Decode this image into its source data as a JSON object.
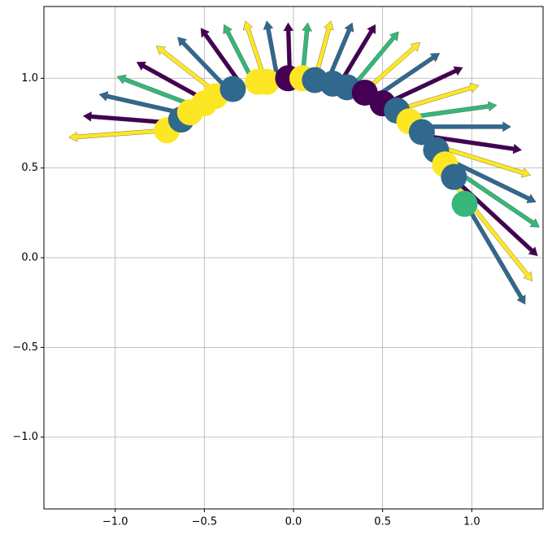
{
  "chart_data": {
    "type": "quiver",
    "xlim": [
      -1.4,
      1.4
    ],
    "ylim": [
      -1.4,
      1.4
    ],
    "xticks": [
      {
        "value": -1.0,
        "label": "−1.0"
      },
      {
        "value": -0.5,
        "label": "−0.5"
      },
      {
        "value": 0.0,
        "label": "0.0"
      },
      {
        "value": 0.5,
        "label": "0.5"
      },
      {
        "value": 1.0,
        "label": "1.0"
      }
    ],
    "yticks": [
      {
        "value": -1.0,
        "label": "−1.0"
      },
      {
        "value": -0.5,
        "label": "−0.5"
      },
      {
        "value": 0.0,
        "label": "0.0"
      },
      {
        "value": 0.5,
        "label": "0.5"
      },
      {
        "value": 1.0,
        "label": "1.0"
      }
    ],
    "grid": true,
    "quiver": {
      "x": [
        -0.71,
        -0.66,
        -0.6,
        -0.54,
        -0.48,
        -0.42,
        -0.36,
        -0.29,
        -0.22,
        -0.16,
        -0.09,
        -0.02,
        0.05,
        0.12,
        0.19,
        0.26,
        0.33,
        0.39,
        0.45,
        0.52,
        0.57,
        0.63,
        0.68,
        0.73,
        0.78,
        0.82,
        0.86,
        0.89,
        0.92,
        0.95
      ],
      "y": [
        0.71,
        0.75,
        0.8,
        0.84,
        0.87,
        0.91,
        0.93,
        0.96,
        0.97,
        0.99,
        1.0,
        1.0,
        1.0,
        0.99,
        0.98,
        0.97,
        0.95,
        0.92,
        0.89,
        0.86,
        0.82,
        0.78,
        0.73,
        0.68,
        0.63,
        0.57,
        0.52,
        0.45,
        0.39,
        0.33
      ],
      "u": [
        -0.55,
        -0.52,
        -0.49,
        -0.45,
        -0.4,
        -0.35,
        -0.29,
        -0.23,
        -0.17,
        -0.11,
        -0.06,
        -0.01,
        0.03,
        0.09,
        0.14,
        0.2,
        0.26,
        0.32,
        0.37,
        0.43,
        0.47,
        0.51,
        0.54,
        0.55,
        0.55,
        0.54,
        0.52,
        0.48,
        0.42,
        0.35
      ],
      "v": [
        -0.04,
        0.04,
        0.11,
        0.17,
        0.22,
        0.27,
        0.3,
        0.32,
        0.33,
        0.33,
        0.32,
        0.31,
        0.31,
        0.33,
        0.33,
        0.33,
        0.31,
        0.28,
        0.25,
        0.2,
        0.14,
        0.07,
        0.0,
        -0.08,
        -0.17,
        -0.26,
        -0.35,
        -0.44,
        -0.52,
        -0.59
      ],
      "colors": [
        "#fde725",
        "#440154",
        "#31688e",
        "#35b779",
        "#440154",
        "#fde725",
        "#31688e",
        "#440154",
        "#35b779",
        "#fde725",
        "#31688e",
        "#440154",
        "#35b779",
        "#fde725",
        "#31688e",
        "#440154",
        "#35b779",
        "#fde725",
        "#31688e",
        "#440154",
        "#fde725",
        "#35b779",
        "#31688e",
        "#440154",
        "#fde725",
        "#31688e",
        "#35b779",
        "#440154",
        "#fde725",
        "#31688e"
      ]
    },
    "scatter": {
      "x": [
        -0.71,
        -0.63,
        -0.58,
        -0.5,
        -0.44,
        -0.34,
        -0.2,
        -0.15,
        -0.03,
        0.05,
        0.12,
        0.22,
        0.3,
        0.4,
        0.5,
        0.58,
        0.65,
        0.72,
        0.8,
        0.85,
        0.9,
        0.96
      ],
      "y": [
        0.71,
        0.77,
        0.81,
        0.86,
        0.9,
        0.94,
        0.98,
        0.98,
        1.0,
        1.0,
        0.99,
        0.97,
        0.95,
        0.92,
        0.86,
        0.82,
        0.76,
        0.7,
        0.6,
        0.52,
        0.45,
        0.3
      ],
      "colors": [
        "#fde725",
        "#31688e",
        "#fde725",
        "#fde725",
        "#fde725",
        "#31688e",
        "#fde725",
        "#fde725",
        "#440154",
        "#fde725",
        "#31688e",
        "#31688e",
        "#31688e",
        "#440154",
        "#440154",
        "#31688e",
        "#fde725",
        "#31688e",
        "#31688e",
        "#fde725",
        "#31688e",
        "#35b779"
      ]
    }
  }
}
